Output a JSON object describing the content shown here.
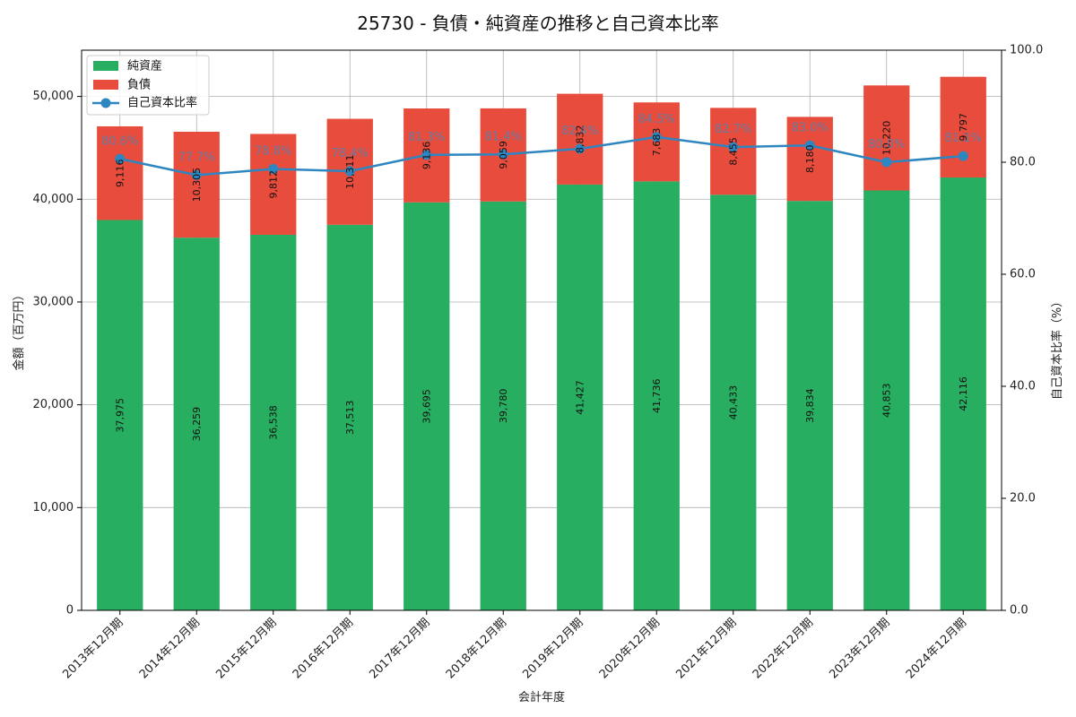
{
  "chart_data": {
    "type": "bar",
    "title": "25730 - 負債・純資産の推移と自己資本比率",
    "xlabel": "会計年度",
    "ylabel": "金額（百万円）",
    "y2label": "自己資本比率（%）",
    "categories": [
      "2013年12月期",
      "2014年12月期",
      "2015年12月期",
      "2016年12月期",
      "2017年12月期",
      "2018年12月期",
      "2019年12月期",
      "2020年12月期",
      "2021年12月期",
      "2022年12月期",
      "2023年12月期",
      "2024年12月期"
    ],
    "series": [
      {
        "name": "純資産",
        "type": "bar",
        "stacked": true,
        "color": "#27ae60",
        "values": [
          37975,
          36259,
          36538,
          37513,
          39695,
          39780,
          41427,
          41736,
          40433,
          39834,
          40853,
          42116
        ],
        "labels": [
          "37,975",
          "36,259",
          "36,538",
          "37,513",
          "39,695",
          "39,780",
          "41,427",
          "41,736",
          "40,433",
          "39,834",
          "40,853",
          "42,116"
        ]
      },
      {
        "name": "負債",
        "type": "bar",
        "stacked": true,
        "color": "#e74c3c",
        "values": [
          9116,
          10305,
          9812,
          10311,
          9136,
          9059,
          8832,
          7683,
          8455,
          8180,
          10220,
          9797
        ],
        "labels": [
          "9,116",
          "10,305",
          "9,812",
          "10,311",
          "9,136",
          "9,059",
          "8,832",
          "7,683",
          "8,455",
          "8,180",
          "10,220",
          "9,797"
        ]
      },
      {
        "name": "自己資本比率",
        "type": "line",
        "axis": "right",
        "color": "#2e86c1",
        "values": [
          80.6,
          77.7,
          78.8,
          78.4,
          81.3,
          81.4,
          82.4,
          84.5,
          82.7,
          83.0,
          80.0,
          81.1
        ],
        "labels": [
          "80.6%",
          "77.7%",
          "78.8%",
          "78.4%",
          "81.3%",
          "81.4%",
          "82.4%",
          "84.5%",
          "82.7%",
          "83.0%",
          "80.0%",
          "81.1%"
        ]
      }
    ],
    "ylim": [
      0,
      54500
    ],
    "y_ticks": [
      0,
      10000,
      20000,
      30000,
      40000,
      50000
    ],
    "y_tick_labels": [
      "0",
      "10,000",
      "20,000",
      "30,000",
      "40,000",
      "50,000"
    ],
    "y2lim": [
      0,
      100
    ],
    "y2_ticks": [
      0,
      20,
      40,
      60,
      80,
      100
    ],
    "y2_tick_labels": [
      "0.0",
      "20.0",
      "40.0",
      "60.0",
      "80.0",
      "100.0"
    ],
    "grid": true,
    "legend": "top-left"
  }
}
